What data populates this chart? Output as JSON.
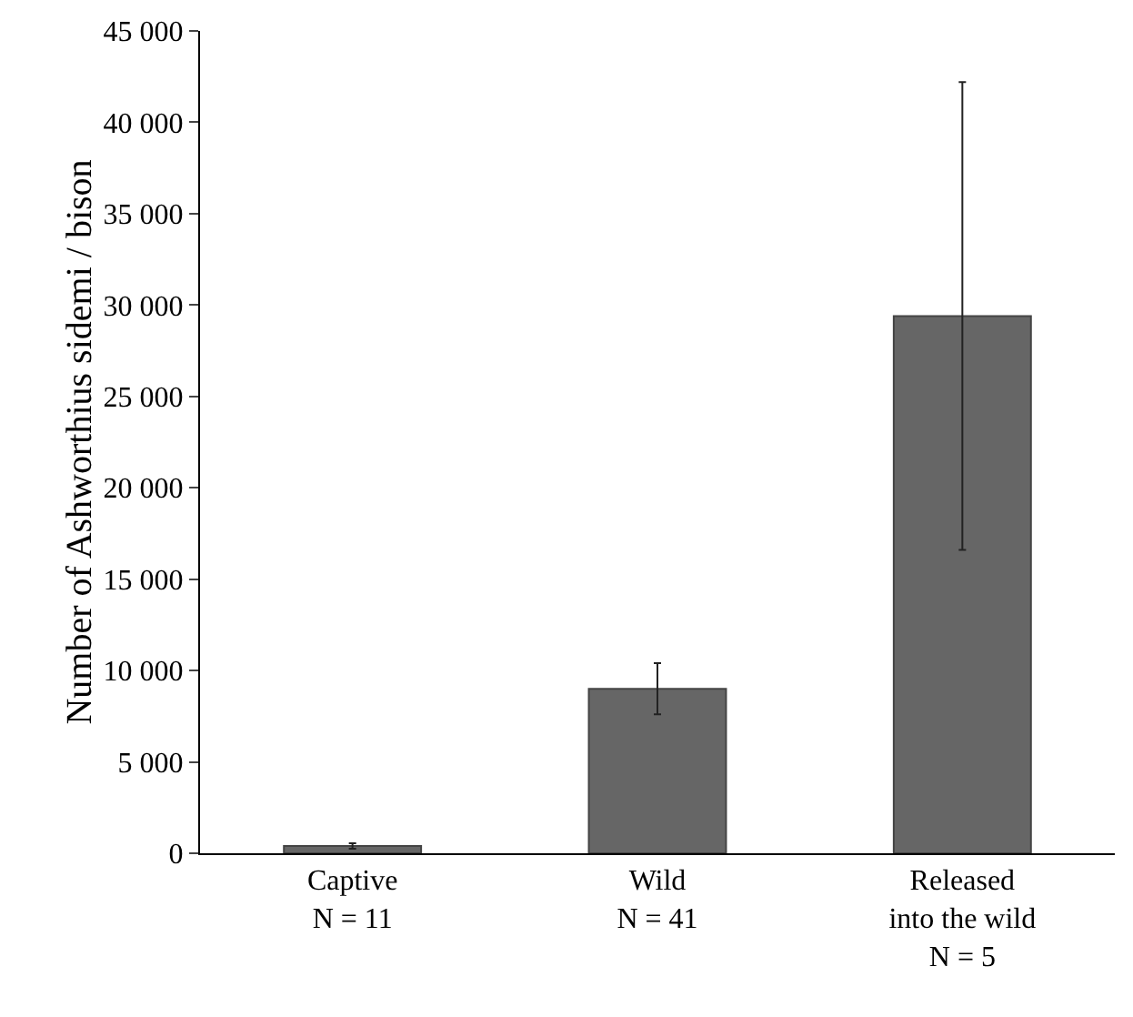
{
  "chart_data": {
    "type": "bar",
    "ylabel": "Number of Ashworthius sidemi / bison",
    "categories": [
      "Captive\nN = 11",
      "Wild\nN = 41",
      "Released\ninto the wild\nN = 5"
    ],
    "values": [
      400,
      9000,
      29400
    ],
    "errors": [
      150,
      [
        7600,
        10400
      ],
      [
        16600,
        42200
      ]
    ],
    "color": "#666666",
    "ylim": [
      0,
      45000
    ],
    "yticks": [
      0,
      {
        "value": 5000,
        "label": "5 000"
      },
      {
        "value": 10000,
        "label": "10 000"
      },
      {
        "value": 15000,
        "label": "15 000"
      },
      {
        "value": 20000,
        "label": "20 000"
      },
      {
        "value": 25000,
        "label": "25 000"
      },
      {
        "value": 30000,
        "label": "30 000"
      },
      {
        "value": 35000,
        "label": "35 000"
      },
      {
        "value": 40000,
        "label": "40 000"
      },
      {
        "value": 45000,
        "label": "45 000"
      }
    ],
    "grid": false,
    "legend": false
  }
}
